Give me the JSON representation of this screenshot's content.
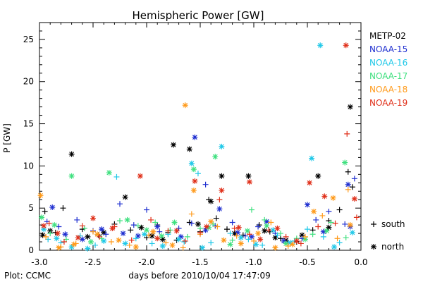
{
  "chart_data": {
    "type": "scatter",
    "title": "Hemispheric Power [GW]",
    "xlabel": "days before 2010/10/04 17:47:09",
    "ylabel": "P [GW]",
    "xlim": [
      -3.0,
      0.0
    ],
    "ylim": [
      0,
      27
    ],
    "xticks": [
      "-3.0",
      "-2.5",
      "-2.0",
      "-1.5",
      "-1.0",
      "-0.5",
      "0.0"
    ],
    "yticks": [
      "0",
      "5",
      "10",
      "15",
      "20",
      "25"
    ],
    "grid": false,
    "legend_position": "right",
    "markers": [
      {
        "symbol": "+",
        "label": "south"
      },
      {
        "symbol": "*",
        "label": "north"
      }
    ],
    "footer": "Plot: CCMC",
    "series": [
      {
        "name": "METP-02",
        "color": "#000000",
        "south": [
          [
            -2.95,
            4.6
          ],
          [
            -2.85,
            2.1
          ],
          [
            -2.78,
            5.0
          ],
          [
            -2.6,
            2.5
          ],
          [
            -2.45,
            1.8
          ],
          [
            -2.3,
            3.1
          ],
          [
            -2.15,
            2.4
          ],
          [
            -2.0,
            1.5
          ],
          [
            -1.9,
            3.0
          ],
          [
            -1.8,
            2.1
          ],
          [
            -1.72,
            1.2
          ],
          [
            -1.6,
            3.3
          ],
          [
            -1.5,
            2.2
          ],
          [
            -1.42,
            6.0
          ],
          [
            -1.35,
            3.8
          ],
          [
            -1.25,
            2.5
          ],
          [
            -1.1,
            1.8
          ],
          [
            -0.95,
            3.0
          ],
          [
            -0.85,
            2.2
          ],
          [
            -0.75,
            1.4
          ],
          [
            -0.6,
            1.0
          ],
          [
            -0.45,
            2.4
          ],
          [
            -0.3,
            3.5
          ],
          [
            -0.2,
            4.8
          ],
          [
            -0.12,
            9.3
          ],
          [
            -0.08,
            7.5
          ]
        ],
        "north": [
          [
            -2.97,
            1.8
          ],
          [
            -2.9,
            2.3
          ],
          [
            -2.7,
            11.4
          ],
          [
            -2.55,
            1.6
          ],
          [
            -2.4,
            2.1
          ],
          [
            -2.2,
            6.3
          ],
          [
            -2.05,
            2.7
          ],
          [
            -1.95,
            1.7
          ],
          [
            -1.85,
            1.3
          ],
          [
            -1.75,
            12.5
          ],
          [
            -1.6,
            12.0
          ],
          [
            -1.52,
            3.1
          ],
          [
            -1.4,
            5.8
          ],
          [
            -1.3,
            8.8
          ],
          [
            -1.18,
            2.0
          ],
          [
            -1.05,
            8.8
          ],
          [
            -0.9,
            2.3
          ],
          [
            -0.8,
            1.5
          ],
          [
            -0.7,
            1.2
          ],
          [
            -0.55,
            1.8
          ],
          [
            -0.4,
            8.8
          ],
          [
            -0.3,
            2.7
          ],
          [
            -0.1,
            17.0
          ]
        ]
      },
      {
        "name": "NOAA-15",
        "color": "#1f2fd0",
        "south": [
          [
            -2.93,
            3.4
          ],
          [
            -2.82,
            2.8
          ],
          [
            -2.65,
            3.6
          ],
          [
            -2.5,
            2.3
          ],
          [
            -2.38,
            1.9
          ],
          [
            -2.25,
            5.5
          ],
          [
            -2.12,
            3.0
          ],
          [
            -2.0,
            4.8
          ],
          [
            -1.88,
            2.2
          ],
          [
            -1.7,
            2.6
          ],
          [
            -1.58,
            3.2
          ],
          [
            -1.45,
            7.8
          ],
          [
            -1.36,
            2.9
          ],
          [
            -1.2,
            3.3
          ],
          [
            -1.08,
            1.7
          ],
          [
            -0.96,
            2.8
          ],
          [
            -0.8,
            2.0
          ],
          [
            -0.68,
            0.9
          ],
          [
            -0.55,
            1.4
          ],
          [
            -0.42,
            3.6
          ],
          [
            -0.3,
            4.6
          ],
          [
            -0.15,
            3.1
          ],
          [
            -0.06,
            8.5
          ]
        ],
        "north": [
          [
            -2.88,
            5.1
          ],
          [
            -2.76,
            1.9
          ],
          [
            -2.6,
            1.3
          ],
          [
            -2.42,
            2.5
          ],
          [
            -2.22,
            2.0
          ],
          [
            -2.08,
            1.7
          ],
          [
            -1.9,
            2.8
          ],
          [
            -1.68,
            1.6
          ],
          [
            -1.55,
            13.4
          ],
          [
            -1.45,
            2.4
          ],
          [
            -1.32,
            4.9
          ],
          [
            -1.15,
            2.1
          ],
          [
            -1.02,
            1.6
          ],
          [
            -0.88,
            3.4
          ],
          [
            -0.72,
            1.1
          ],
          [
            -0.5,
            5.4
          ],
          [
            -0.35,
            2.2
          ],
          [
            -0.12,
            7.8
          ],
          [
            -0.1,
            2.8
          ]
        ]
      },
      {
        "name": "NOAA-16",
        "color": "#1fc8e8",
        "south": [
          [
            -2.92,
            1.3
          ],
          [
            -2.8,
            0.9
          ],
          [
            -2.62,
            1.7
          ],
          [
            -2.48,
            0.6
          ],
          [
            -2.28,
            8.7
          ],
          [
            -2.1,
            1.4
          ],
          [
            -1.95,
            0.8
          ],
          [
            -1.8,
            1.9
          ],
          [
            -1.65,
            1.0
          ],
          [
            -1.52,
            9.1
          ],
          [
            -1.4,
            0.9
          ],
          [
            -1.22,
            2.0
          ],
          [
            -1.05,
            1.3
          ],
          [
            -0.92,
            0.6
          ],
          [
            -0.78,
            1.8
          ],
          [
            -0.62,
            1.1
          ],
          [
            -0.5,
            2.5
          ],
          [
            -0.35,
            1.6
          ],
          [
            -0.2,
            0.9
          ]
        ],
        "north": [
          [
            -2.96,
            2.5
          ],
          [
            -2.84,
            1.4
          ],
          [
            -2.7,
            0.4
          ],
          [
            -2.55,
            0.2
          ],
          [
            -2.4,
            1.1
          ],
          [
            -2.2,
            0.8
          ],
          [
            -2.02,
            1.9
          ],
          [
            -1.85,
            0.5
          ],
          [
            -1.7,
            1.3
          ],
          [
            -1.58,
            10.3
          ],
          [
            -1.48,
            0.3
          ],
          [
            -1.3,
            12.3
          ],
          [
            -1.12,
            1.5
          ],
          [
            -0.98,
            0.7
          ],
          [
            -0.82,
            2.4
          ],
          [
            -0.66,
            0.9
          ],
          [
            -0.46,
            10.9
          ],
          [
            -0.38,
            24.3
          ],
          [
            -0.25,
            0.4
          ],
          [
            -0.08,
            2.1
          ]
        ]
      },
      {
        "name": "NOAA-17",
        "color": "#3fe07f",
        "south": [
          [
            -2.9,
            2.0
          ],
          [
            -2.75,
            1.3
          ],
          [
            -2.58,
            2.6
          ],
          [
            -2.42,
            1.4
          ],
          [
            -2.25,
            3.5
          ],
          [
            -2.08,
            2.9
          ],
          [
            -1.92,
            3.3
          ],
          [
            -1.78,
            2.4
          ],
          [
            -1.62,
            1.6
          ],
          [
            -1.5,
            2.6
          ],
          [
            -1.38,
            3.1
          ],
          [
            -1.2,
            1.2
          ],
          [
            -1.02,
            4.8
          ],
          [
            -0.9,
            3.6
          ],
          [
            -0.75,
            2.0
          ],
          [
            -0.6,
            1.4
          ],
          [
            -0.45,
            1.9
          ],
          [
            -0.28,
            3.3
          ],
          [
            -0.14,
            1.5
          ]
        ],
        "north": [
          [
            -2.98,
            3.9
          ],
          [
            -2.86,
            3.0
          ],
          [
            -2.7,
            8.8
          ],
          [
            -2.52,
            1.0
          ],
          [
            -2.35,
            9.2
          ],
          [
            -2.18,
            3.6
          ],
          [
            -2.0,
            2.4
          ],
          [
            -1.86,
            1.7
          ],
          [
            -1.74,
            3.3
          ],
          [
            -1.56,
            9.6
          ],
          [
            -1.42,
            2.7
          ],
          [
            -1.36,
            11.1
          ],
          [
            -1.22,
            0.7
          ],
          [
            -1.06,
            2.3
          ],
          [
            -0.88,
            2.9
          ],
          [
            -0.7,
            0.8
          ],
          [
            -0.52,
            1.3
          ],
          [
            -0.32,
            2.3
          ],
          [
            -0.15,
            10.4
          ]
        ]
      },
      {
        "name": "NOAA-18",
        "color": "#ff9a1a",
        "south": [
          [
            -2.94,
            1.6
          ],
          [
            -2.8,
            0.4
          ],
          [
            -2.66,
            0.8
          ],
          [
            -2.5,
            2.2
          ],
          [
            -2.33,
            1.0
          ],
          [
            -2.16,
            0.6
          ],
          [
            -1.98,
            1.8
          ],
          [
            -1.82,
            0.9
          ],
          [
            -1.66,
            0.3
          ],
          [
            -1.58,
            4.3
          ],
          [
            -1.5,
            1.9
          ],
          [
            -1.34,
            2.8
          ],
          [
            -1.16,
            1.7
          ],
          [
            -1.0,
            1.1
          ],
          [
            -0.84,
            3.3
          ],
          [
            -0.68,
            0.5
          ],
          [
            -0.52,
            1.6
          ],
          [
            -0.36,
            4.1
          ],
          [
            -0.22,
            1.4
          ],
          [
            -0.12,
            7.2
          ]
        ],
        "north": [
          [
            -2.99,
            6.5
          ],
          [
            -2.82,
            0.3
          ],
          [
            -2.68,
            0.7
          ],
          [
            -2.46,
            1.9
          ],
          [
            -2.26,
            1.2
          ],
          [
            -2.1,
            0.4
          ],
          [
            -1.94,
            2.2
          ],
          [
            -1.76,
            0.6
          ],
          [
            -1.64,
            17.2
          ],
          [
            -1.56,
            7.1
          ],
          [
            -1.4,
            3.4
          ],
          [
            -1.28,
            1.2
          ],
          [
            -1.12,
            0.8
          ],
          [
            -0.96,
            2.0
          ],
          [
            -0.8,
            0.3
          ],
          [
            -0.64,
            0.7
          ],
          [
            -0.44,
            4.6
          ],
          [
            -0.26,
            6.2
          ],
          [
            -0.1,
            3.0
          ]
        ]
      },
      {
        "name": "NOAA-19",
        "color": "#e0301a",
        "south": [
          [
            -2.91,
            3.2
          ],
          [
            -2.77,
            1.0
          ],
          [
            -2.6,
            2.9
          ],
          [
            -2.44,
            1.6
          ],
          [
            -2.3,
            2.8
          ],
          [
            -2.14,
            1.2
          ],
          [
            -1.96,
            3.6
          ],
          [
            -1.8,
            2.3
          ],
          [
            -1.64,
            1.1
          ],
          [
            -1.5,
            2.1
          ],
          [
            -1.32,
            6.0
          ],
          [
            -1.18,
            2.6
          ],
          [
            -1.04,
            1.9
          ],
          [
            -0.86,
            2.4
          ],
          [
            -0.7,
            1.6
          ],
          [
            -0.56,
            0.8
          ],
          [
            -0.4,
            2.8
          ],
          [
            -0.24,
            3.2
          ],
          [
            -0.13,
            13.8
          ],
          [
            -0.04,
            3.9
          ]
        ],
        "north": [
          [
            -2.96,
            2.9
          ],
          [
            -2.83,
            2.0
          ],
          [
            -2.64,
            1.5
          ],
          [
            -2.5,
            3.8
          ],
          [
            -2.32,
            2.6
          ],
          [
            -2.06,
            8.8
          ],
          [
            -1.9,
            1.4
          ],
          [
            -1.72,
            2.3
          ],
          [
            -1.55,
            8.2
          ],
          [
            -1.44,
            2.8
          ],
          [
            -1.3,
            7.1
          ],
          [
            -1.14,
            2.7
          ],
          [
            -1.04,
            8.1
          ],
          [
            -0.94,
            1.3
          ],
          [
            -0.78,
            2.6
          ],
          [
            -0.6,
            1.1
          ],
          [
            -0.48,
            8.0
          ],
          [
            -0.34,
            6.4
          ],
          [
            -0.14,
            24.3
          ],
          [
            -0.06,
            6.1
          ]
        ]
      }
    ]
  }
}
